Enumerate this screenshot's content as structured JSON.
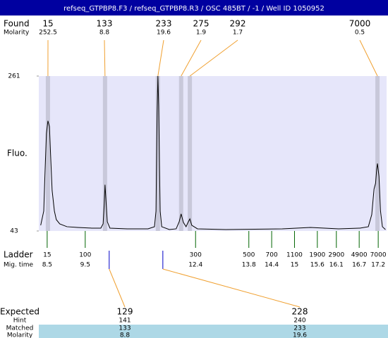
{
  "chart_data": {
    "type": "electropherogram",
    "title": "refseq_GTPBP8.F3 / refseq_GTPBP8.R3 / OSC 485BT  / -1 / Well ID 1050952",
    "y_label": "Fluo.",
    "xlim": [
      8.28,
      17.42
    ],
    "ylim": [
      43,
      261
    ],
    "yticks": [
      43,
      261
    ],
    "found": {
      "label": "Found",
      "molarity_label": "Molarity",
      "sizes": [
        15,
        133,
        233,
        275,
        292,
        7000
      ],
      "molarity": [
        252.5,
        8.8,
        19.6,
        1.9,
        1.7,
        0.5
      ],
      "times": [
        8.52,
        10.02,
        11.41,
        12.02,
        12.25,
        17.18
      ]
    },
    "ladder": {
      "label": "Ladder",
      "time_label": "Mig. time",
      "sizes": [
        15,
        100,
        300,
        500,
        700,
        1100,
        1900,
        2900,
        4900,
        7000
      ],
      "times": [
        8.5,
        9.5,
        12.4,
        13.8,
        14.4,
        15,
        15.6,
        16.1,
        16.7,
        17.2
      ]
    },
    "expected": {
      "label": "Expected",
      "hint_label": "Hint",
      "matched_label": "Matched",
      "molarity_label": "Molarity",
      "sizes": [
        129,
        228
      ],
      "hints": [
        141,
        240
      ],
      "matched": [
        133,
        233
      ],
      "molarity": [
        8.8,
        19.6
      ],
      "times": [
        10.13,
        11.54
      ]
    },
    "trace": {
      "color": "#000000",
      "x": [
        8.33,
        8.41,
        8.44,
        8.48,
        8.52,
        8.56,
        8.59,
        8.63,
        8.69,
        8.74,
        8.83,
        9.02,
        9.3,
        9.67,
        9.91,
        9.97,
        10.0,
        10.02,
        10.04,
        10.08,
        10.15,
        10.6,
        11.15,
        11.32,
        11.36,
        11.37,
        11.39,
        11.41,
        11.43,
        11.45,
        11.47,
        11.51,
        11.71,
        11.89,
        11.97,
        12.02,
        12.08,
        12.15,
        12.21,
        12.25,
        12.3,
        12.45,
        13.19,
        14.68,
        15.42,
        16.16,
        16.72,
        16.94,
        17.03,
        17.09,
        17.13,
        17.16,
        17.18,
        17.22,
        17.26,
        17.31,
        17.39
      ],
      "values": [
        51,
        71,
        120,
        180,
        198,
        190,
        150,
        100,
        71,
        59,
        53,
        49,
        48,
        47,
        47,
        53,
        81,
        108,
        91,
        56,
        47,
        46,
        46,
        49,
        71,
        120,
        210,
        261,
        219,
        140,
        71,
        49,
        45,
        46,
        56,
        67,
        55,
        49,
        56,
        60,
        51,
        46,
        45,
        46,
        48,
        46,
        47,
        49,
        66,
        102,
        110,
        130,
        138,
        120,
        71,
        49,
        45
      ]
    },
    "colors": {
      "title_bar": "#0000a0",
      "background": "#e6e6fa",
      "band": "#c8c8da",
      "connector": "#f0a030",
      "ladder_tick": "#006400",
      "expected_tick": "#0000c8",
      "matched_row": "#add8e6"
    }
  }
}
